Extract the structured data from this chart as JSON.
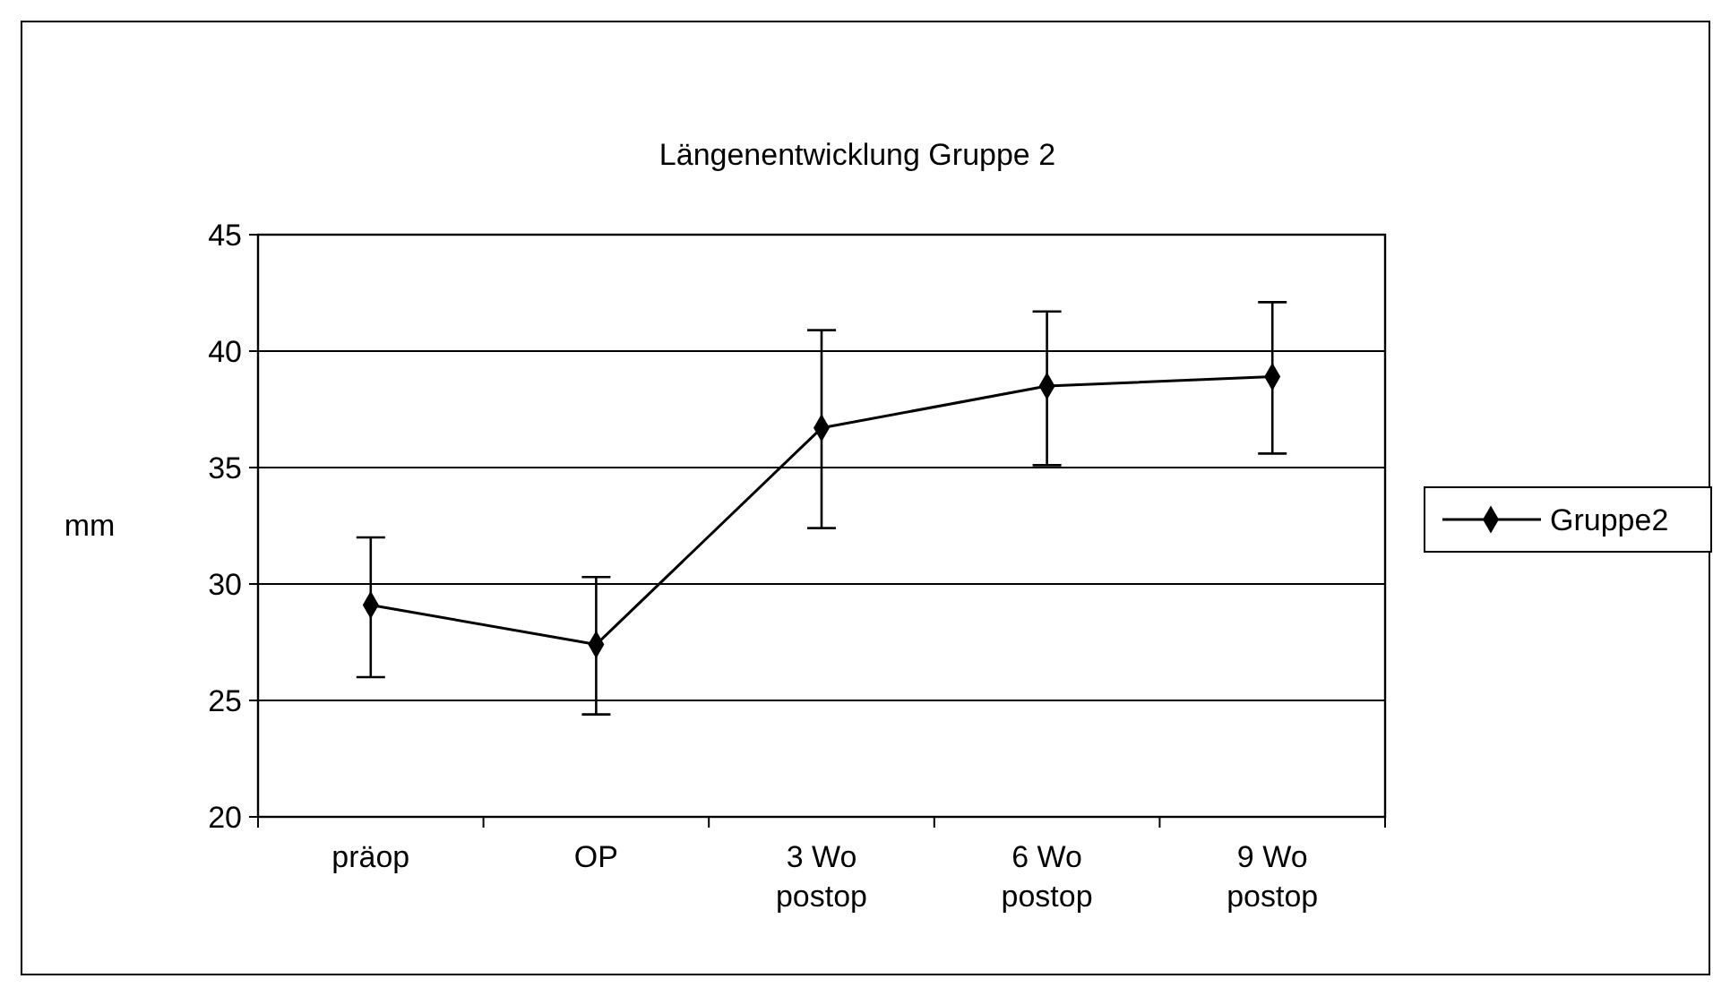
{
  "chart_data": {
    "type": "line",
    "title": "Längenentwicklung Gruppe 2",
    "ylabel": "mm",
    "categories": [
      "präop",
      "OP",
      "3 Wo postop",
      "6 Wo postop",
      "9 Wo postop"
    ],
    "series": [
      {
        "name": "Gruppe2",
        "color": "#000000",
        "values": [
          29.1,
          27.4,
          36.7,
          38.5,
          38.9
        ],
        "errors": [
          [
            26.0,
            32.0
          ],
          [
            24.4,
            30.3
          ],
          [
            32.4,
            40.9
          ],
          [
            35.1,
            41.7
          ],
          [
            35.6,
            42.1
          ]
        ]
      }
    ],
    "ylim": [
      20,
      45
    ],
    "yticks": [
      20,
      25,
      30,
      35,
      40,
      45
    ],
    "grid": "y",
    "legend": "right",
    "marker": "diamond",
    "line_style": "solid"
  }
}
